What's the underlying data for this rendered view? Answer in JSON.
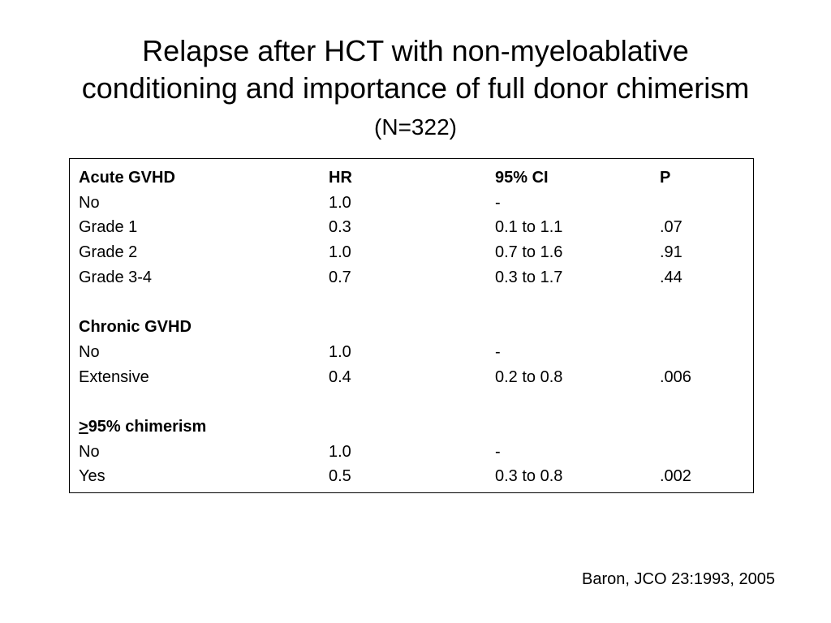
{
  "title": {
    "line1": "Relapse after HCT with non-myeloablative",
    "line2": "conditioning and importance of full donor chimerism",
    "subtitle": "(N=322)"
  },
  "table": {
    "header": {
      "label": "Acute GVHD",
      "hr": "HR",
      "ci": "95% CI",
      "p": "P"
    },
    "acute_rows": [
      {
        "label": "No",
        "hr": "1.0",
        "ci": "-",
        "p": ""
      },
      {
        "label": "Grade 1",
        "hr": "0.3",
        "ci": "0.1 to 1.1",
        "p": ".07"
      },
      {
        "label": "Grade 2",
        "hr": "1.0",
        "ci": "0.7 to 1.6",
        "p": ".91"
      },
      {
        "label": "Grade 3-4",
        "hr": "0.7",
        "ci": "0.3 to 1.7",
        "p": ".44"
      }
    ],
    "chronic_heading": "Chronic GVHD",
    "chronic_rows": [
      {
        "label": "No",
        "hr": "1.0",
        "ci": "-",
        "p": ""
      },
      {
        "label": "Extensive",
        "hr": "0.4",
        "ci": "0.2 to 0.8",
        "p": ".006"
      }
    ],
    "chimerism_heading": {
      "symbol": ">",
      "text": "95% chimerism"
    },
    "chimerism_rows": [
      {
        "label": "No",
        "hr": "1.0",
        "ci": "-",
        "p": ""
      },
      {
        "label": "Yes",
        "hr": "0.5",
        "ci": "0.3 to 0.8",
        "p": ".002"
      }
    ]
  },
  "citation": "Baron, JCO 23:1993, 2005"
}
